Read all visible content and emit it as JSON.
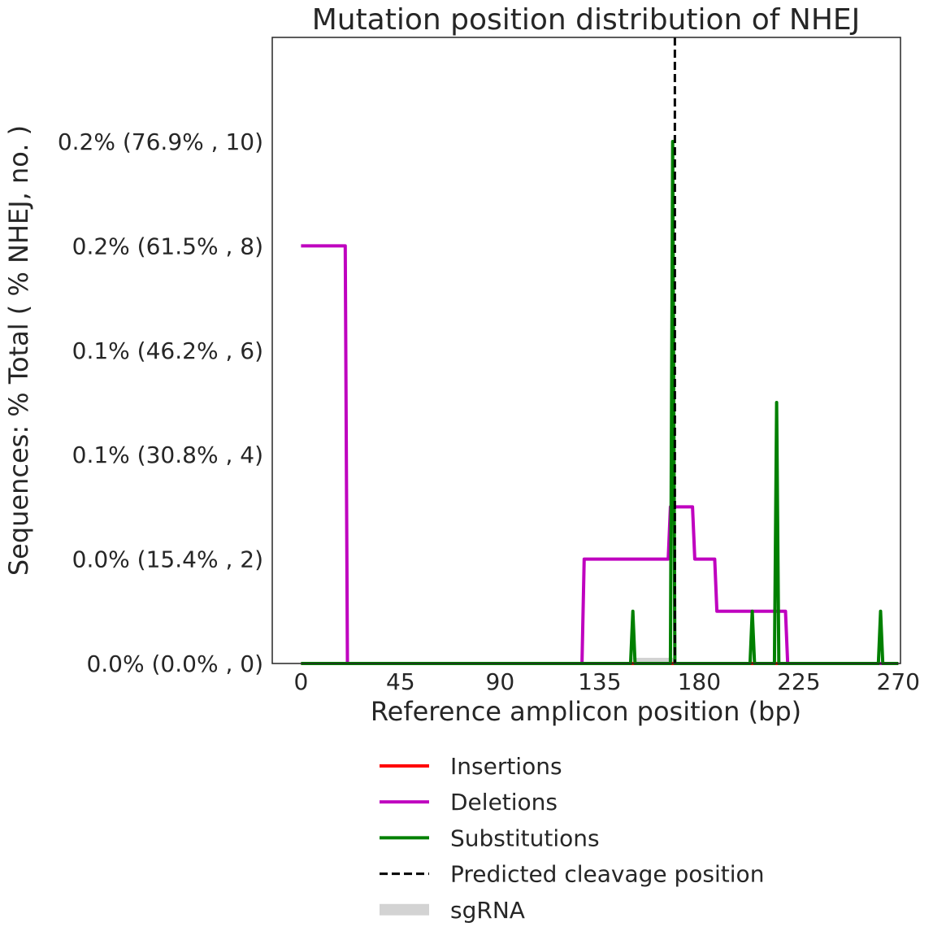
{
  "chart_data": {
    "type": "line",
    "title": "Mutation position distribution of NHEJ",
    "xlabel": "Reference amplicon position (bp)",
    "ylabel": "Sequences: % Total ( % NHEJ, no. )",
    "xlim": [
      -13,
      271
    ],
    "ylim": [
      0,
      10
    ],
    "x_ticks": [
      0,
      45,
      90,
      135,
      180,
      225,
      270
    ],
    "x_tick_labels": [
      "0",
      "45",
      "90",
      "135",
      "180",
      "225",
      "270"
    ],
    "y_ticks": [
      0,
      2,
      4,
      6,
      8,
      10
    ],
    "y_tick_labels": [
      "0.0% (0.0% , 0)",
      "0.0% (15.4% , 2)",
      "0.1% (30.8% , 4)",
      "0.1% (46.2% , 6)",
      "0.2% (61.5% , 8)",
      "0.2% (76.9% , 10)"
    ],
    "grid": false,
    "legend_placement": "below",
    "series": [
      {
        "name": "Insertions",
        "color": "#ff0000",
        "x": [
          0,
          270
        ],
        "y": [
          0,
          0
        ]
      },
      {
        "name": "Deletions",
        "color": "#bf00bf",
        "x": [
          0,
          20,
          21,
          127,
          128,
          166,
          167,
          177,
          178,
          187,
          188,
          219,
          220,
          270
        ],
        "y": [
          8,
          8,
          0,
          0,
          2,
          2,
          3,
          3,
          2,
          2,
          1,
          1,
          0,
          0
        ]
      },
      {
        "name": "Substitutions",
        "color": "#008000",
        "x": [
          0,
          149,
          150,
          151,
          167,
          168,
          169,
          203,
          204,
          205,
          214,
          215,
          216,
          261,
          262,
          263,
          270
        ],
        "y": [
          0,
          0,
          1,
          0,
          0,
          10,
          0,
          0,
          1,
          0,
          0,
          5,
          0,
          0,
          1,
          0,
          0
        ]
      }
    ],
    "cleavage": {
      "name": "Predicted cleavage position",
      "x": 169,
      "color": "#000000"
    },
    "sgrna": {
      "name": "sgRNA",
      "start": 150,
      "end": 169,
      "color": "#d3d3d3"
    }
  }
}
